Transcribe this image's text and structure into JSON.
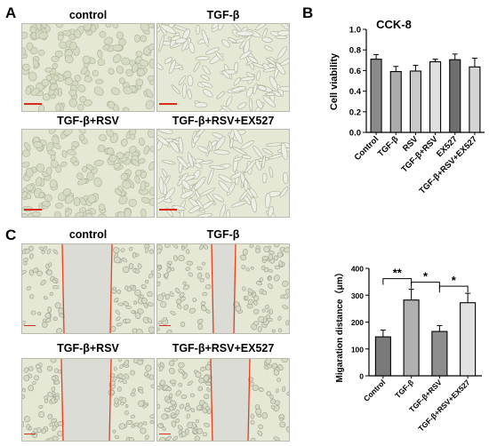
{
  "panels": {
    "A": {
      "label": "A",
      "images": [
        {
          "caption": "control"
        },
        {
          "caption": "TGF-β"
        },
        {
          "caption": "TGF-β+RSV"
        },
        {
          "caption": "TGF-β+RSV+EX527"
        }
      ]
    },
    "B": {
      "label": "B"
    },
    "C": {
      "label": "C",
      "images": [
        {
          "caption": "control"
        },
        {
          "caption": "TGF-β"
        },
        {
          "caption": "TGF-β+RSV"
        },
        {
          "caption": "TGF-β+RSV+EX527"
        }
      ]
    }
  },
  "colors": {
    "cell_bg": "#e4e8d4",
    "scratch_line": "#e8401c",
    "scale_bar": "#d92a1c"
  },
  "chart_data": [
    {
      "type": "bar",
      "title": "CCK-8",
      "xlabel": "",
      "ylabel": "Cell viability",
      "ylim": [
        0,
        1.0
      ],
      "yticks": [
        "0.0",
        "0.2",
        "0.4",
        "0.6",
        "0.8",
        "1.0"
      ],
      "grid": false,
      "categories": [
        "Control",
        "TGF-β",
        "RSV",
        "TGF-β+RSV",
        "EX527",
        "TGF-β+RSV+EX527"
      ],
      "values": [
        0.71,
        0.59,
        0.595,
        0.685,
        0.705,
        0.635
      ],
      "errors": [
        0.045,
        0.05,
        0.055,
        0.025,
        0.055,
        0.085
      ],
      "colors": [
        "#8a8a8a",
        "#ababab",
        "#c8c8c8",
        "#e0e0e0",
        "#6e7070",
        "#d4d4d4"
      ]
    },
    {
      "type": "bar",
      "title": "",
      "xlabel": "",
      "ylabel": "Migaration distance（μm）",
      "ylim": [
        0,
        400
      ],
      "yticks": [
        "0",
        "100",
        "200",
        "300",
        "400"
      ],
      "grid": false,
      "categories": [
        "Control",
        "TGF-β",
        "TGF-β+RSV",
        "TGF-β+RSV+EX527"
      ],
      "values": [
        145,
        282,
        165,
        272
      ],
      "errors": [
        25,
        40,
        22,
        35
      ],
      "colors": [
        "#7a7a7a",
        "#b0b0b0",
        "#8e8e8e",
        "#e2e2e2"
      ],
      "significance": [
        {
          "from": 0,
          "to": 1,
          "label": "**"
        },
        {
          "from": 1,
          "to": 2,
          "label": "*"
        },
        {
          "from": 2,
          "to": 3,
          "label": "*"
        }
      ]
    }
  ]
}
